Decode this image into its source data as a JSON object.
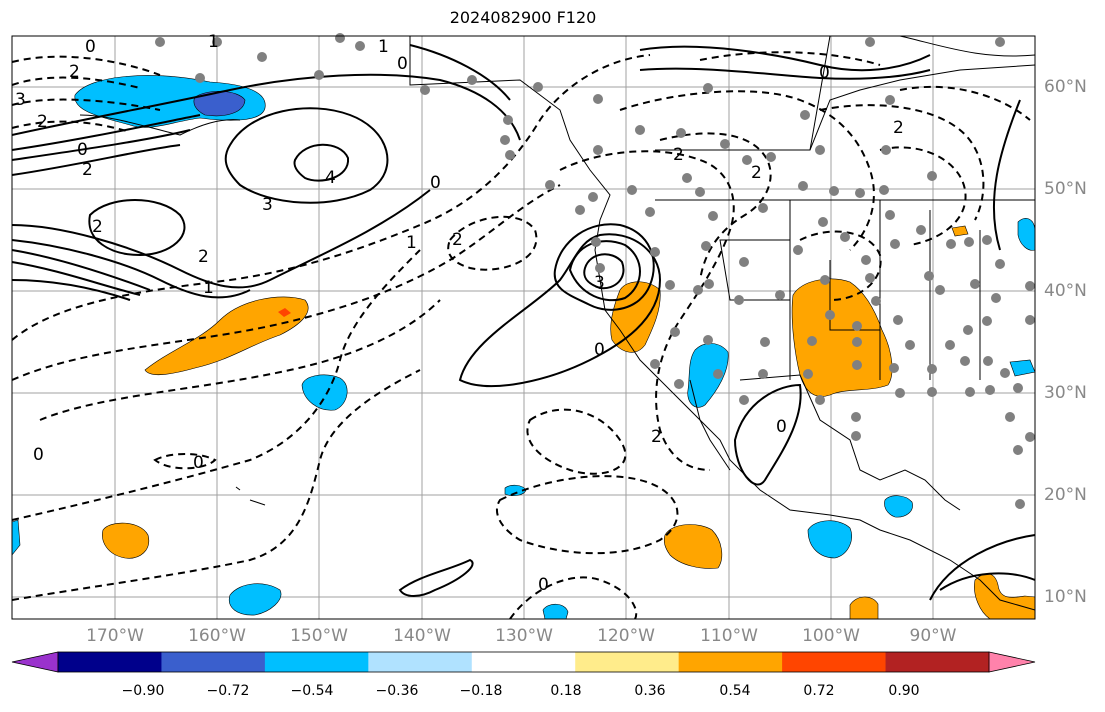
{
  "title": "2024082900 F120",
  "lon_labels": [
    "170°W",
    "160°W",
    "150°W",
    "140°W",
    "130°W",
    "120°W",
    "110°W",
    "100°W",
    "90°W"
  ],
  "lat_labels": [
    "60°N",
    "50°N",
    "40°N",
    "30°N",
    "20°N",
    "10°N"
  ],
  "contour_labels": [
    "0",
    "1",
    "0",
    "1",
    "0",
    "2",
    "3",
    "2",
    "0",
    "2",
    "4",
    "3",
    "2",
    "1",
    "0",
    "1",
    "2",
    "3",
    "2",
    "2",
    "0",
    "2",
    "2",
    "2",
    "0",
    "0",
    "0",
    "0"
  ],
  "colorbar": {
    "colors": [
      "#9a32cd",
      "#00008b",
      "#3a5fcd",
      "#00bfff",
      "#b0e2ff",
      "#ffffff",
      "#ffec8b",
      "#ffa500",
      "#ff4500",
      "#b22222",
      "#ff82ab"
    ],
    "tick_labels": [
      "−0.90",
      "−0.72",
      "−0.54",
      "−0.36",
      "−0.18",
      "0.18",
      "0.36",
      "0.54",
      "0.72",
      "0.90"
    ]
  },
  "colors": {
    "positive_fill": "#ffa500",
    "negative_fill": "#00bfff",
    "strong_negative_fill": "#3a5fcd",
    "strong_positive_fill": "#ff4500",
    "grid": "#a0a0a0",
    "station_dot": "#808080",
    "axis_label": "#808080"
  }
}
